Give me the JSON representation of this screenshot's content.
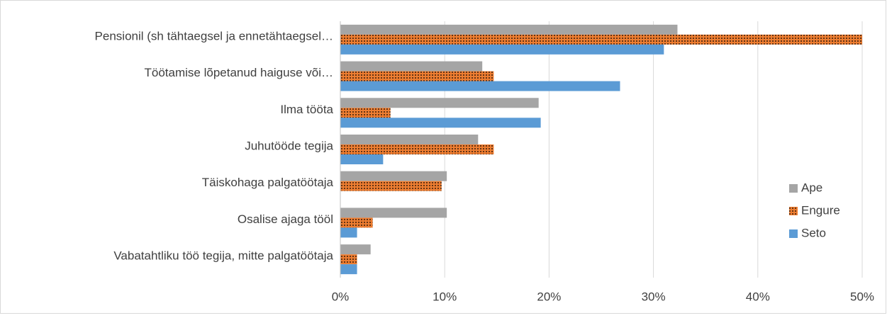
{
  "chart_data": {
    "type": "bar",
    "orientation": "horizontal",
    "categories": [
      "Pensionil (sh tähtaegsel ja ennetähtaegsel…",
      "Töötamise lõpetanud haiguse või…",
      "Ilma tööta",
      "Juhutööde tegija",
      "Täiskohaga palgatöötaja",
      "Osalise ajaga tööl",
      "Vabatahtliku töö tegija, mitte palgatöötaja"
    ],
    "series": [
      {
        "name": "Ape",
        "color": "#a5a5a5",
        "values": [
          32.3,
          13.6,
          19.0,
          13.2,
          10.2,
          10.2,
          2.9
        ]
      },
      {
        "name": "Engure",
        "color": "#ed7d31",
        "pattern": "dots",
        "values": [
          50.0,
          14.7,
          4.8,
          14.7,
          9.7,
          3.1,
          1.6
        ]
      },
      {
        "name": "Seto",
        "color": "#5b9bd5",
        "values": [
          31.0,
          26.8,
          19.2,
          4.1,
          0,
          1.6,
          1.6
        ]
      }
    ],
    "xlim": [
      0,
      50
    ],
    "xticks": [
      {
        "value": 0,
        "label": "0%"
      },
      {
        "value": 10,
        "label": "10%"
      },
      {
        "value": 20,
        "label": "20%"
      },
      {
        "value": 30,
        "label": "30%"
      },
      {
        "value": 40,
        "label": "40%"
      },
      {
        "value": 50,
        "label": "50%"
      }
    ],
    "grid": true,
    "legend": "right"
  }
}
